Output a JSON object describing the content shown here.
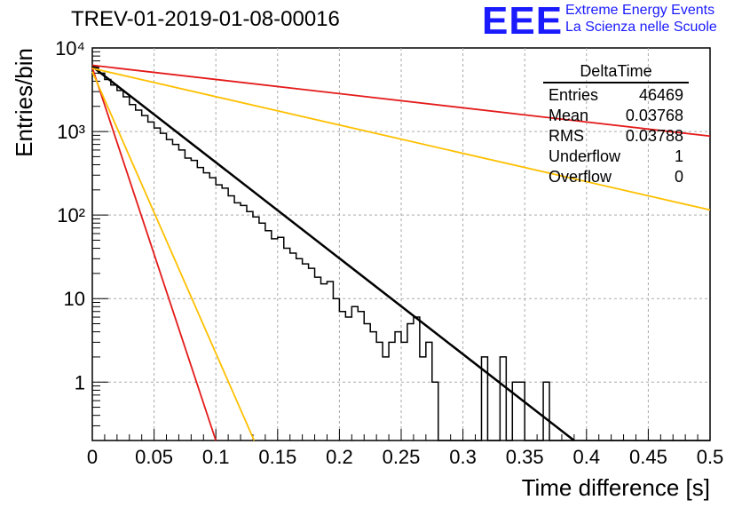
{
  "logo": {
    "mark": "EEE",
    "line1": "Extreme Energy Events",
    "line2": "La Scienza nelle Scuole"
  },
  "stats": {
    "title": "DeltaTime",
    "rows": [
      {
        "label": "Entries",
        "value": "46469"
      },
      {
        "label": "Mean",
        "value": "0.03768"
      },
      {
        "label": "RMS",
        "value": "0.03788"
      },
      {
        "label": "Underflow",
        "value": "1"
      },
      {
        "label": "Overflow",
        "value": "0"
      }
    ]
  },
  "chart_data": {
    "type": "histogram",
    "title": "TREV-01-2019-01-08-00016",
    "xlabel": "Time difference [s]",
    "ylabel": "Entries/bin",
    "xlim": [
      0,
      0.5
    ],
    "ylim": [
      0.2,
      10000
    ],
    "yscale": "log",
    "grid": true,
    "x_ticks": [
      0,
      0.05,
      0.1,
      0.15,
      0.2,
      0.25,
      0.3,
      0.35,
      0.4,
      0.45,
      0.5
    ],
    "x_tick_labels": [
      "0",
      "0.05",
      "0.1",
      "0.15",
      "0.2",
      "0.25",
      "0.3",
      "0.35",
      "0.4",
      "0.45",
      "0.5"
    ],
    "y_ticks": [
      1,
      10,
      100,
      1000,
      10000
    ],
    "y_tick_labels": [
      "1",
      "10",
      "10²",
      "10³",
      "10⁴"
    ],
    "histogram": {
      "bin_width": 0.005,
      "counts": [
        5800,
        5000,
        4200,
        3600,
        3100,
        2600,
        2100,
        1800,
        1550,
        1300,
        1100,
        950,
        800,
        700,
        600,
        480,
        450,
        370,
        320,
        280,
        230,
        210,
        170,
        140,
        130,
        110,
        95,
        80,
        65,
        52,
        54,
        40,
        35,
        30,
        26,
        23,
        18,
        15,
        16,
        10,
        7,
        6,
        8,
        7,
        5,
        4,
        3,
        2,
        3,
        4,
        3,
        5,
        6,
        2,
        3,
        1,
        0,
        0,
        0,
        0,
        0,
        0,
        0,
        2,
        0,
        0,
        2,
        0,
        1,
        1,
        0,
        0,
        0,
        1,
        0,
        0,
        0,
        0,
        0,
        0,
        0,
        0,
        0,
        0,
        0,
        0,
        0,
        0,
        0,
        0,
        0,
        0,
        0,
        0,
        0,
        0,
        0,
        0,
        0,
        0
      ],
      "color": "#000000"
    },
    "fits": [
      {
        "x": [
          0,
          0.39
        ],
        "y": [
          6000,
          0.2
        ],
        "color": "#000000"
      },
      {
        "x": [
          0,
          0.1
        ],
        "y": [
          5800,
          0.2
        ],
        "color": "#e41a1a"
      },
      {
        "x": [
          0,
          0.131
        ],
        "y": [
          5200,
          0.2
        ],
        "color": "#ffbf00"
      },
      {
        "x": [
          0,
          0.5
        ],
        "y": [
          6200,
          880
        ],
        "color": "#e41a1a"
      },
      {
        "x": [
          0,
          0.5
        ],
        "y": [
          5700,
          115
        ],
        "color": "#ffbf00"
      }
    ]
  }
}
